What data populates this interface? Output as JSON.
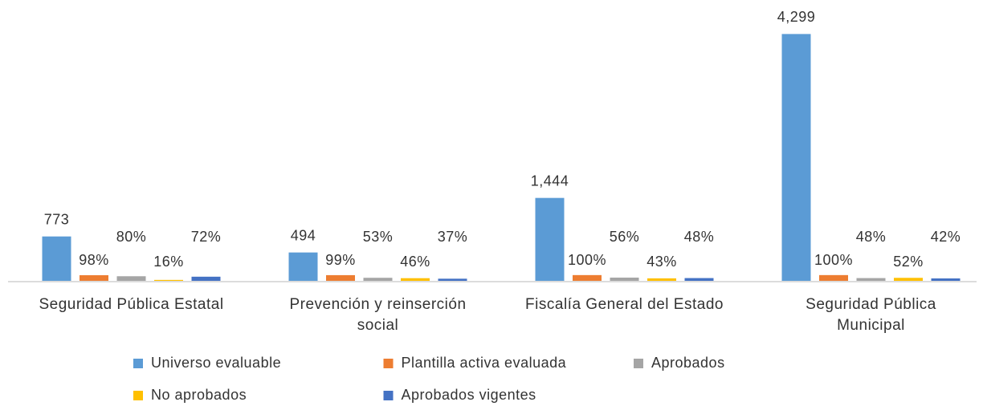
{
  "chart_data": {
    "type": "bar",
    "categories": [
      "Seguridad Pública Estatal",
      "Prevención y reinserción social",
      "Fiscalía General del Estado",
      "Seguridad Pública Municipal"
    ],
    "series": [
      {
        "name": "Universo evaluable",
        "color": "#5b9bd5",
        "values": [
          773,
          494,
          1444,
          4299
        ],
        "value_labels": [
          "773",
          "494",
          "1,444",
          "4,299"
        ]
      },
      {
        "name": "Plantilla activa evaluada",
        "color": "#ed7d31",
        "values": [
          98,
          99,
          100,
          100
        ],
        "value_labels": [
          "98%",
          "99%",
          "100%",
          "100%"
        ]
      },
      {
        "name": "Aprobados",
        "color": "#a5a5a5",
        "values": [
          80,
          53,
          56,
          48
        ],
        "value_labels": [
          "80%",
          "53%",
          "56%",
          "48%"
        ]
      },
      {
        "name": "No aprobados",
        "color": "#ffc000",
        "values": [
          16,
          46,
          43,
          52
        ],
        "value_labels": [
          "16%",
          "46%",
          "43%",
          "52%"
        ]
      },
      {
        "name": "Aprobados vigentes",
        "color": "#4472c4",
        "values": [
          72,
          37,
          48,
          42
        ],
        "value_labels": [
          "72%",
          "37%",
          "48%",
          "42%"
        ]
      }
    ],
    "ylim": [
      0,
      4500
    ]
  }
}
